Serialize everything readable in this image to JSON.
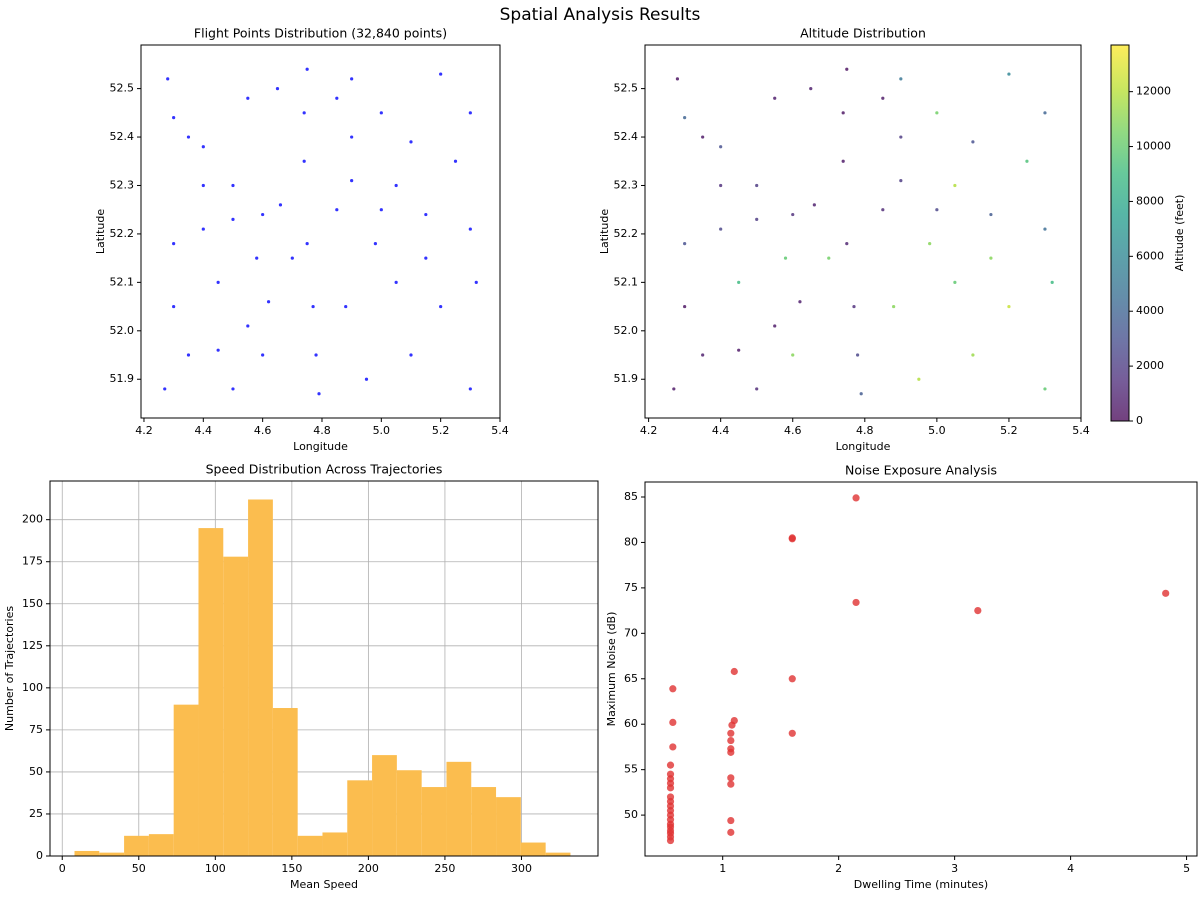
{
  "title": "Spatial Analysis Results",
  "chart_data": [
    {
      "type": "scatter",
      "title": "Flight Points Distribution (32,840 points)",
      "xlabel": "Longitude",
      "ylabel": "Latitude",
      "color": "#0000ff",
      "xlim": [
        4.19,
        5.4
      ],
      "ylim": [
        51.82,
        52.59
      ],
      "xticks": [
        4.2,
        4.4,
        4.6,
        4.8,
        {
          "value": 5.0,
          "label": "5.0"
        },
        5.2,
        5.4
      ],
      "yticks": [
        51.9,
        {
          "value": 52.0,
          "label": "52.0"
        },
        52.1,
        52.2,
        52.3,
        52.4,
        52.5
      ],
      "x": [
        4.3,
        4.4,
        4.5,
        4.6,
        4.66,
        4.85,
        5.0,
        5.15,
        5.3,
        4.75,
        4.77,
        4.78,
        4.79,
        4.74,
        4.74,
        4.75,
        4.3,
        4.4,
        4.5,
        4.9,
        5.1,
        5.3,
        4.9,
        5.2,
        4.45,
        4.55,
        4.62,
        4.35,
        4.28,
        4.35,
        4.3,
        4.45,
        4.5,
        4.6,
        4.65,
        4.7,
        4.88,
        4.95,
        5.05,
        5.1,
        5.2,
        5.25,
        5.3,
        5.0,
        4.9,
        5.15,
        4.85,
        4.55,
        4.4,
        5.32,
        4.27,
        4.58,
        5.05,
        4.98
      ],
      "values": [
        52.18,
        52.21,
        52.23,
        52.24,
        52.26,
        52.25,
        52.25,
        52.24,
        52.21,
        52.18,
        52.05,
        51.95,
        51.87,
        52.35,
        52.45,
        52.54,
        52.44,
        52.38,
        52.3,
        52.31,
        52.39,
        52.45,
        52.52,
        52.53,
        51.96,
        52.01,
        52.06,
        51.95,
        52.52,
        52.4,
        52.05,
        52.1,
        51.88,
        51.95,
        52.5,
        52.15,
        52.05,
        51.9,
        52.1,
        51.95,
        52.05,
        52.35,
        51.88,
        52.45,
        52.4,
        52.15,
        52.48,
        52.48,
        52.3,
        52.1,
        51.88,
        52.15,
        52.3,
        52.18
      ]
    },
    {
      "type": "scatter",
      "title": "Altitude Distribution",
      "xlabel": "Longitude",
      "ylabel": "Latitude",
      "colormap": "viridis",
      "clabel": "Altitude (feet)",
      "clim": [
        0,
        13700
      ],
      "cticks": [
        0,
        2000,
        4000,
        6000,
        8000,
        10000,
        12000
      ],
      "xlim": [
        4.19,
        5.4
      ],
      "ylim": [
        51.82,
        52.59
      ],
      "xticks": [
        4.2,
        4.4,
        4.6,
        4.8,
        {
          "value": 5.0,
          "label": "5.0"
        },
        5.2,
        5.4
      ],
      "yticks": [
        51.9,
        {
          "value": 52.0,
          "label": "52.0"
        },
        52.1,
        52.2,
        52.3,
        52.4,
        52.5
      ],
      "x": [
        4.3,
        4.4,
        4.5,
        4.6,
        4.66,
        4.85,
        5.0,
        5.15,
        5.3,
        4.75,
        4.77,
        4.78,
        4.79,
        4.74,
        4.74,
        4.75,
        4.3,
        4.4,
        4.5,
        4.9,
        5.1,
        5.3,
        4.9,
        5.2,
        4.45,
        4.55,
        4.62,
        4.35,
        4.28,
        4.35,
        4.3,
        4.45,
        4.5,
        4.6,
        4.65,
        4.7,
        4.88,
        4.95,
        5.05,
        5.1,
        5.2,
        5.25,
        5.3,
        5.0,
        4.9,
        5.15,
        4.85,
        4.55,
        4.4,
        5.32,
        4.27,
        4.58,
        5.05,
        4.98
      ],
      "values": [
        52.18,
        52.21,
        52.23,
        52.24,
        52.26,
        52.25,
        52.25,
        52.24,
        52.21,
        52.18,
        52.05,
        51.95,
        51.87,
        52.35,
        52.45,
        52.54,
        52.44,
        52.38,
        52.3,
        52.31,
        52.39,
        52.45,
        52.52,
        52.53,
        51.96,
        52.01,
        52.06,
        51.95,
        52.52,
        52.4,
        52.05,
        52.1,
        51.88,
        51.95,
        52.5,
        52.15,
        52.05,
        51.9,
        52.1,
        51.95,
        52.05,
        52.35,
        51.88,
        52.45,
        52.4,
        52.15,
        52.48,
        52.48,
        52.3,
        52.1,
        51.88,
        52.15,
        52.3,
        52.18
      ],
      "color_values": [
        3000,
        2500,
        2000,
        1500,
        800,
        1200,
        2500,
        3500,
        4500,
        1000,
        1500,
        2500,
        3500,
        500,
        400,
        300,
        4000,
        3000,
        2000,
        2000,
        3000,
        4000,
        5000,
        6000,
        500,
        600,
        700,
        800,
        300,
        500,
        400,
        9000,
        1200,
        11000,
        800,
        10500,
        11000,
        12000,
        10000,
        11500,
        12500,
        9500,
        10000,
        10500,
        2000,
        11000,
        600,
        700,
        1500,
        9000,
        500,
        10000,
        12000,
        11000
      ]
    },
    {
      "type": "histogram",
      "title": "Speed Distribution Across Trajectories",
      "xlabel": "Mean Speed",
      "ylabel": "Number of Trajectories",
      "color": "#fbbd4f",
      "grid": true,
      "xlim": [
        -8,
        350
      ],
      "ylim": [
        0,
        223
      ],
      "xticks": [
        0,
        50,
        100,
        150,
        200,
        250,
        300
      ],
      "yticks": [
        0,
        25,
        50,
        75,
        100,
        125,
        150,
        175,
        200
      ],
      "bins": [
        8,
        24.2,
        40.4,
        56.6,
        72.8,
        89,
        105.2,
        121.4,
        137.6,
        153.8,
        170,
        186.2,
        202.4,
        218.6,
        234.8,
        251,
        267.2,
        283.4,
        299.6,
        315.8,
        332
      ],
      "values": [
        3,
        2,
        12,
        13,
        90,
        195,
        178,
        212,
        88,
        12,
        14,
        45,
        60,
        51,
        41,
        56,
        41,
        35,
        8,
        2
      ]
    },
    {
      "type": "scatter",
      "title": "Noise Exposure Analysis",
      "xlabel": "Dwelling Time (minutes)",
      "ylabel": "Maximum Noise (dB)",
      "color": "#e03232",
      "size": "large",
      "xlim": [
        0.33,
        5.09
      ],
      "ylim": [
        45.5,
        86.65
      ],
      "xticks": [
        1,
        2,
        3,
        4,
        5
      ],
      "yticks": [
        50,
        55,
        60,
        65,
        70,
        75,
        80,
        85
      ],
      "x": [
        0.55,
        0.55,
        0.55,
        0.55,
        0.55,
        0.55,
        0.55,
        0.55,
        0.55,
        0.55,
        0.55,
        0.55,
        0.55,
        0.55,
        0.55,
        0.55,
        0.55,
        0.57,
        0.57,
        0.57,
        1.07,
        1.07,
        1.07,
        1.07,
        1.07,
        1.07,
        1.07,
        1.07,
        1.08,
        1.1,
        1.1,
        1.6,
        1.6,
        1.6,
        1.6,
        2.15,
        2.15,
        3.2,
        4.82
      ],
      "values": [
        47.2,
        47.6,
        48,
        48.3,
        48.7,
        49,
        49.5,
        50,
        50.5,
        51,
        51.5,
        52,
        53,
        53.5,
        54,
        54.5,
        55.5,
        57.5,
        60.2,
        63.9,
        48.1,
        49.4,
        53.4,
        54.1,
        56.9,
        57.3,
        58.2,
        59,
        59.9,
        60.4,
        65.8,
        59,
        65,
        80.4,
        80.5,
        73.4,
        84.9,
        72.5,
        74.4
      ]
    }
  ]
}
